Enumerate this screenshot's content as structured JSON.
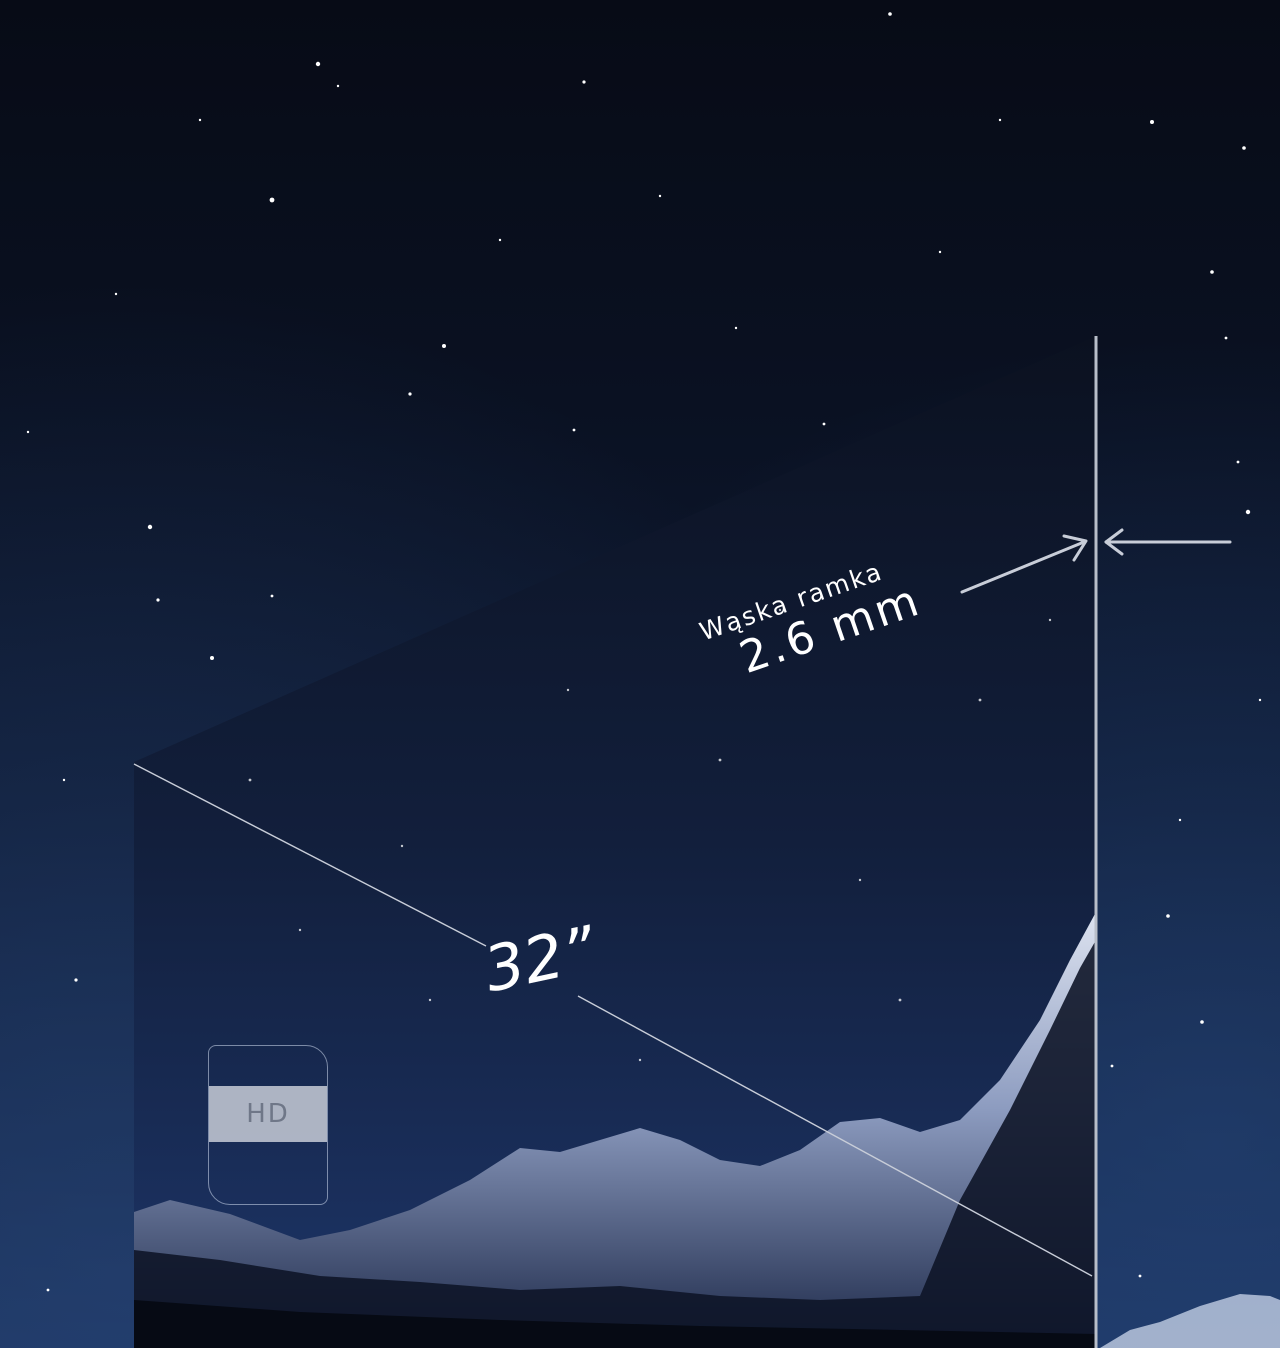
{
  "bezel": {
    "title": "Wąska ramka",
    "value": "2.6 mm"
  },
  "diagonal": {
    "label": "32”"
  },
  "badge": {
    "label": "HD"
  },
  "colors": {
    "sky_top": "#070b16",
    "sky_bottom": "#1c3460",
    "line": "#c8cdd8",
    "text": "#ffffff"
  }
}
